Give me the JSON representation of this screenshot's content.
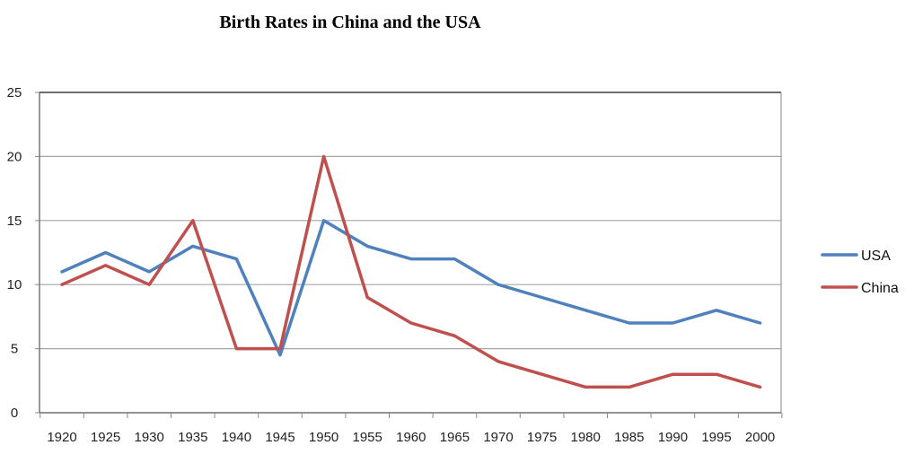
{
  "chart_data": {
    "type": "line",
    "title": "Birth Rates in China and the USA",
    "xlabel": "",
    "ylabel": "",
    "categories": [
      "1920",
      "1925",
      "1930",
      "1935",
      "1940",
      "1945",
      "1950",
      "1955",
      "1960",
      "1965",
      "1970",
      "1975",
      "1980",
      "1985",
      "1990",
      "1995",
      "2000"
    ],
    "ylim": [
      0,
      25
    ],
    "yticks": [
      0,
      5,
      10,
      15,
      20,
      25
    ],
    "grid": true,
    "legend_position": "right",
    "series": [
      {
        "name": "USA",
        "color": "#4f81bd",
        "values": [
          11,
          12.5,
          11,
          13,
          12,
          4.5,
          15,
          13,
          12,
          12,
          10,
          9,
          8,
          7,
          7,
          8,
          7
        ]
      },
      {
        "name": "China",
        "color": "#c0504d",
        "values": [
          10,
          11.5,
          10,
          15,
          5,
          5,
          20,
          9,
          7,
          6,
          4,
          3,
          2,
          2,
          3,
          3,
          2
        ]
      }
    ]
  }
}
